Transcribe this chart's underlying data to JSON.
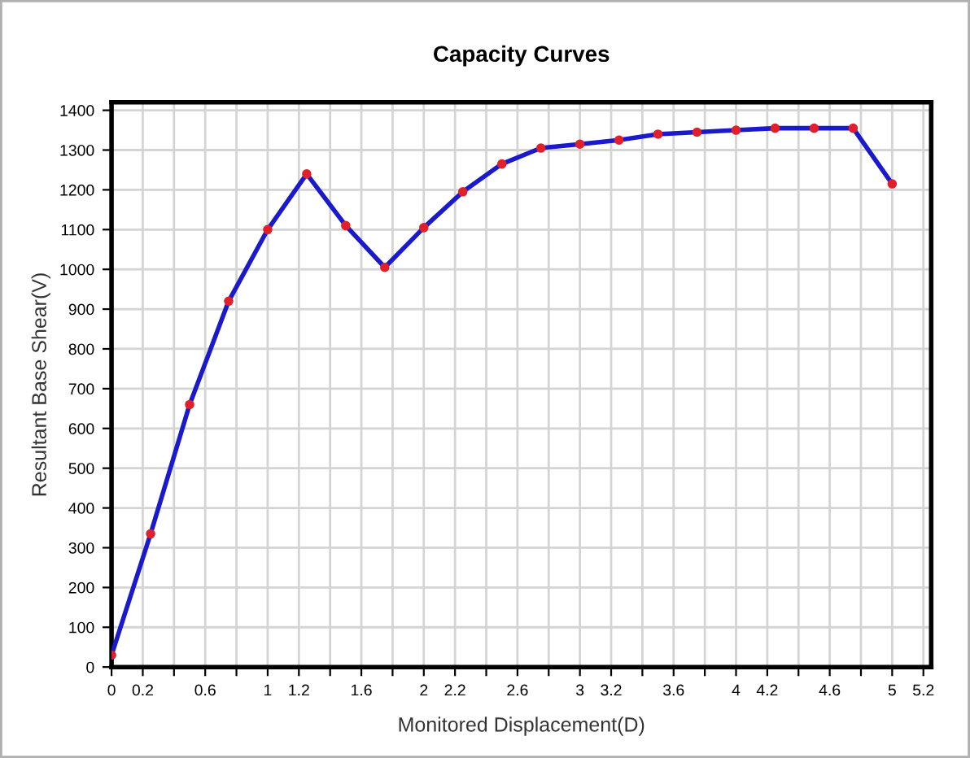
{
  "chart_data": {
    "type": "line",
    "title": "Capacity Curves",
    "xlabel": "Monitored Displacement(D)",
    "ylabel": "Resultant Base Shear(V)",
    "x": [
      0,
      0.25,
      0.5,
      0.75,
      1,
      1.25,
      1.5,
      1.75,
      2,
      2.25,
      2.5,
      2.75,
      3,
      3.25,
      3.5,
      3.75,
      4,
      4.25,
      4.5,
      4.75,
      5
    ],
    "series": [
      {
        "color": "#1a1acc",
        "colors": [
          "#e0202a",
          "#e0202a",
          "#e0202a",
          "#e0202a",
          "#e0202a",
          "#e0202a",
          "#e0202a",
          "#e0202a",
          "#e0202a",
          "#e0202a",
          "#e0202a",
          "#e0202a",
          "#e0202a",
          "#e0202a",
          "#e0202a",
          "#e0202a",
          "#e0202a",
          "#e0202a",
          "#e0202a",
          "#e0202a",
          "#e0202a"
        ],
        "values": [
          30,
          335,
          660,
          920,
          1100,
          1240,
          1110,
          1005,
          1105,
          1195,
          1265,
          1305,
          1315,
          1325,
          1340,
          1345,
          1350,
          1355,
          1355,
          1355,
          1215
        ]
      }
    ],
    "xlim": [
      0,
      5.25
    ],
    "ylim": [
      0,
      1420
    ],
    "xticks": [
      0,
      0.2,
      {
        "value": 0.4,
        "label": null
      },
      0.6,
      {
        "value": 0.8,
        "label": null
      },
      1,
      1.2,
      {
        "value": 1.4,
        "label": null
      },
      1.6,
      {
        "value": 1.8,
        "label": null
      },
      2,
      2.2,
      {
        "value": 2.4,
        "label": null
      },
      2.6,
      {
        "value": 2.8,
        "label": null
      },
      3,
      3.2,
      {
        "value": 3.4,
        "label": null
      },
      3.6,
      {
        "value": 3.8,
        "label": null
      },
      4,
      4.2,
      {
        "value": 4.4,
        "label": null
      },
      4.6,
      {
        "value": 4.8,
        "label": null
      },
      5,
      5.2
    ],
    "yticks": [
      0,
      100,
      200,
      300,
      400,
      500,
      600,
      700,
      800,
      900,
      1000,
      1100,
      1200,
      1300,
      1400
    ],
    "grid": true,
    "marker": "circle",
    "line_style": "solid"
  }
}
